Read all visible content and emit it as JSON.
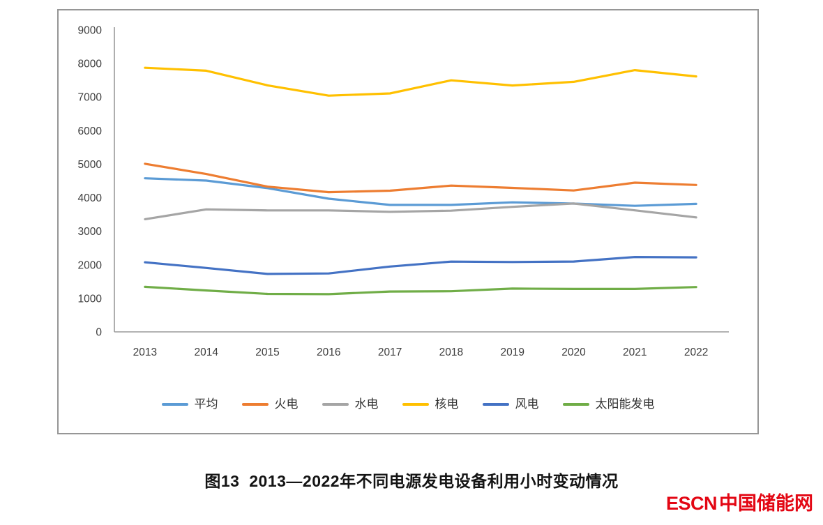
{
  "chart_data": {
    "type": "line",
    "title": "图13  2013—2022年不同电源发电设备利用小时变动情况",
    "xlabel": "",
    "ylabel": "",
    "categories": [
      "2013",
      "2014",
      "2015",
      "2016",
      "2017",
      "2018",
      "2019",
      "2020",
      "2021",
      "2022"
    ],
    "y_ticks": [
      9000,
      8000,
      7000,
      6000,
      5000,
      4000,
      3000,
      2000,
      1000,
      0
    ],
    "ylim": [
      0,
      9000
    ],
    "grid": false,
    "legend_position": "bottom",
    "axis_color": "#9a9a9a",
    "tick_label_color": "#3d3d3d",
    "series": [
      {
        "name": "平均",
        "color": "#5B9BD5",
        "values": [
          4579,
          4511,
          4286,
          3969,
          3785,
          3786,
          3862,
          3825,
          3758,
          3817
        ]
      },
      {
        "name": "火电",
        "color": "#ED7D31",
        "values": [
          5012,
          4706,
          4329,
          4165,
          4209,
          4361,
          4293,
          4216,
          4448,
          4379
        ]
      },
      {
        "name": "水电",
        "color": "#A5A5A5",
        "values": [
          3359,
          3653,
          3621,
          3621,
          3579,
          3613,
          3726,
          3827,
          3622,
          3412
        ]
      },
      {
        "name": "核电",
        "color": "#FFC000",
        "values": [
          7874,
          7787,
          7350,
          7042,
          7108,
          7499,
          7346,
          7453,
          7802,
          7616
        ]
      },
      {
        "name": "风电",
        "color": "#4472C4",
        "values": [
          2074,
          1905,
          1728,
          1742,
          1948,
          2095,
          2082,
          2097,
          2232,
          2221
        ]
      },
      {
        "name": "太阳能发电",
        "color": "#70AD47",
        "values": [
          1342,
          1235,
          1133,
          1125,
          1204,
          1212,
          1291,
          1281,
          1281,
          1337
        ]
      }
    ]
  },
  "logo": {
    "escn": "ESCN",
    "cn": "中国储能网",
    "color": "#E30613"
  }
}
